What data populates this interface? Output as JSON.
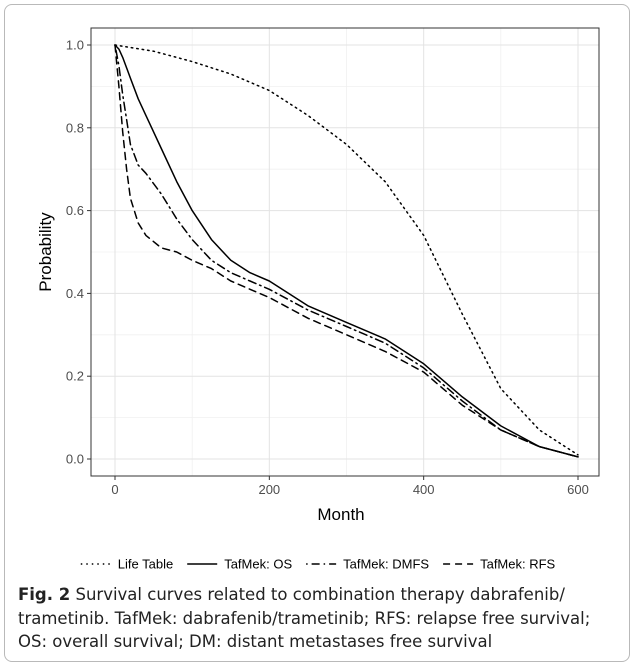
{
  "chart_data": {
    "type": "line",
    "xlabel": "Month",
    "ylabel": "Probability",
    "xlim": [
      0,
      600
    ],
    "ylim": [
      0,
      1
    ],
    "x_ticks": [
      "0",
      "200",
      "400",
      "600"
    ],
    "y_ticks": [
      "0.0",
      "0.2",
      "0.4",
      "0.6",
      "0.8",
      "1.0"
    ],
    "grid": true,
    "legend_position": "bottom",
    "series": [
      {
        "name": "Life Table",
        "line_style": "dotted",
        "x": [
          0,
          50,
          100,
          150,
          200,
          250,
          300,
          350,
          400,
          450,
          500,
          550,
          600
        ],
        "y": [
          1.0,
          0.985,
          0.96,
          0.93,
          0.89,
          0.83,
          0.76,
          0.67,
          0.54,
          0.35,
          0.17,
          0.07,
          0.01
        ]
      },
      {
        "name": "TafMek: OS",
        "line_style": "solid",
        "x": [
          0,
          5,
          10,
          20,
          30,
          40,
          60,
          80,
          100,
          125,
          150,
          175,
          200,
          250,
          300,
          350,
          400,
          450,
          500,
          550,
          600
        ],
        "y": [
          1.0,
          0.99,
          0.97,
          0.92,
          0.87,
          0.83,
          0.75,
          0.67,
          0.6,
          0.53,
          0.48,
          0.45,
          0.43,
          0.37,
          0.33,
          0.29,
          0.23,
          0.15,
          0.08,
          0.03,
          0.005
        ]
      },
      {
        "name": "TafMek: DMFS",
        "line_style": "dotdash",
        "x": [
          0,
          5,
          10,
          15,
          20,
          30,
          40,
          60,
          80,
          100,
          125,
          150,
          175,
          200,
          250,
          300,
          350,
          400,
          450,
          500,
          550,
          600
        ],
        "y": [
          1.0,
          0.95,
          0.88,
          0.82,
          0.76,
          0.71,
          0.69,
          0.64,
          0.58,
          0.53,
          0.48,
          0.45,
          0.43,
          0.41,
          0.36,
          0.32,
          0.28,
          0.22,
          0.14,
          0.07,
          0.03,
          0.005
        ]
      },
      {
        "name": "TafMek: RFS",
        "line_style": "dashed",
        "x": [
          0,
          5,
          10,
          15,
          20,
          30,
          40,
          60,
          80,
          100,
          125,
          150,
          175,
          200,
          250,
          300,
          350,
          400,
          450,
          500,
          550,
          600
        ],
        "y": [
          1.0,
          0.9,
          0.79,
          0.7,
          0.63,
          0.57,
          0.54,
          0.51,
          0.5,
          0.48,
          0.46,
          0.43,
          0.41,
          0.39,
          0.34,
          0.3,
          0.26,
          0.21,
          0.13,
          0.07,
          0.03,
          0.005
        ]
      }
    ]
  },
  "caption": {
    "label": "Fig. 2",
    "text": " Survival curves related to combination therapy dabrafenib/ trametinib. TafMek: dabrafenib/trametinib; RFS: relapse free survival; OS: overall survival; DM: distant metastases free survival"
  }
}
